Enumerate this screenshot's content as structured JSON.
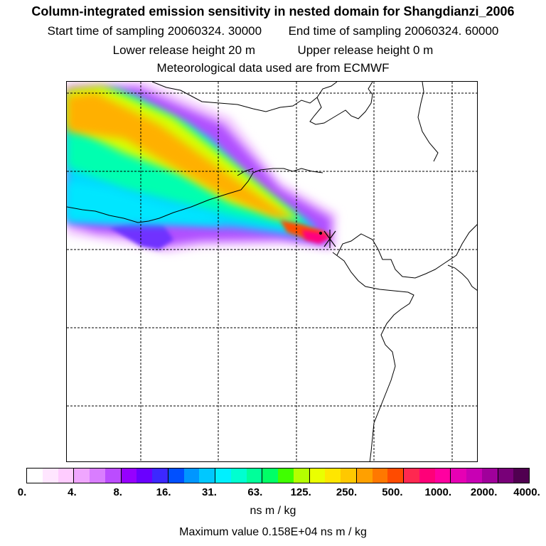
{
  "header": {
    "title": "Column-integrated emission sensitivity in nested domain for Shangdianzi_2006",
    "sampling_start": "Start time of sampling 20060324. 30000",
    "sampling_end": "End time of sampling 20060324. 60000",
    "lower_release": "Lower release height   20 m",
    "upper_release": "Upper release height    0 m",
    "met_data": "Meteorological data used are from ECMWF"
  },
  "legend": {
    "tick_labels": [
      "0.",
      "4.",
      "8.",
      "16.",
      "31.",
      "63.",
      "125.",
      "250.",
      "500.",
      "1000.",
      "2000.",
      "4000."
    ],
    "colors": [
      "#ffffff",
      "#ffe6ff",
      "#ffccff",
      "#f0a6ff",
      "#d97dff",
      "#bb4cff",
      "#9600ff",
      "#6a00ff",
      "#3c28ff",
      "#0050ff",
      "#0096ff",
      "#00c8ff",
      "#00f0ff",
      "#00ffd0",
      "#00ff9a",
      "#00ff66",
      "#40ff00",
      "#b4ff00",
      "#eaff00",
      "#ffe600",
      "#ffc800",
      "#ffa000",
      "#ff7800",
      "#ff4b00",
      "#ff2850",
      "#ff0078",
      "#ff00a0",
      "#e600b4",
      "#c800b4",
      "#a0009b",
      "#780078",
      "#500050"
    ],
    "unit": "ns m / kg"
  },
  "footer": {
    "max_value": "Maximum value  0.158E+04 ns m / kg"
  }
}
